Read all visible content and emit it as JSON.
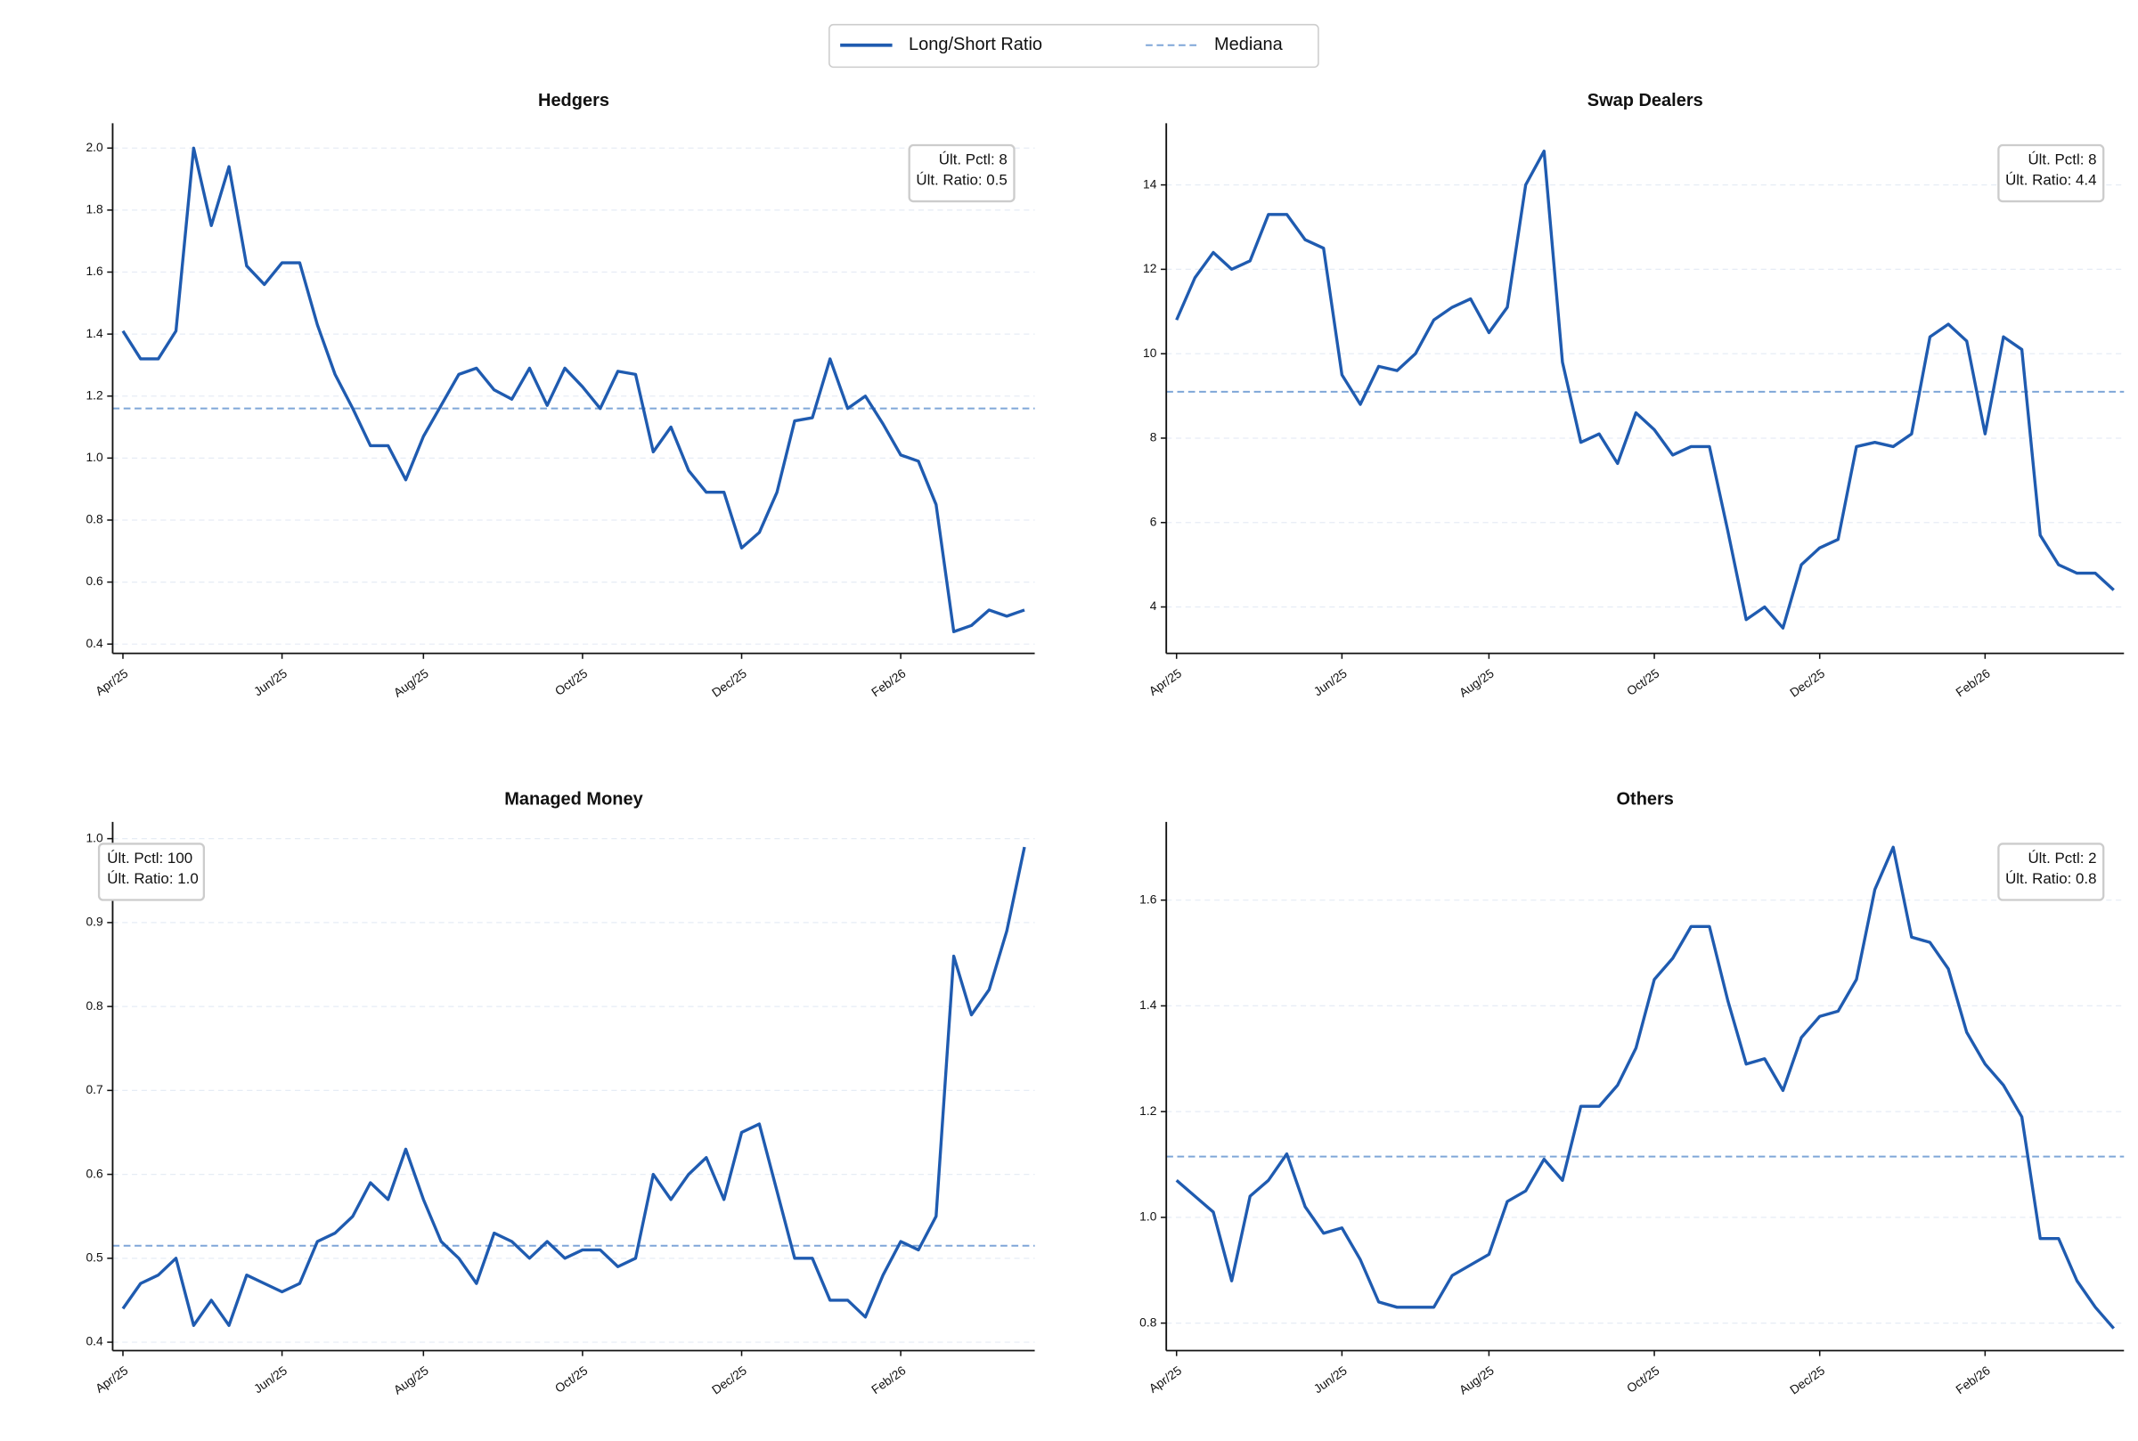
{
  "legend": {
    "entries": [
      {
        "name": "Long/Short Ratio",
        "color": "#1f5bb0"
      },
      {
        "name": "Mediana",
        "color": "#7fa6d8"
      }
    ]
  },
  "chart_data": [
    {
      "type": "line",
      "title": "Hedgers",
      "color": "#1f5bb0",
      "median_color": "#7fa6d8",
      "categories": [
        "Apr/25",
        null,
        null,
        null,
        null,
        null,
        null,
        null,
        null,
        "Jun/25",
        null,
        null,
        null,
        null,
        null,
        null,
        null,
        "Aug/25",
        null,
        null,
        null,
        null,
        null,
        null,
        null,
        null,
        "Oct/25",
        null,
        null,
        null,
        null,
        null,
        null,
        null,
        null,
        "Dec/25",
        null,
        null,
        null,
        null,
        null,
        null,
        null,
        null,
        "Feb/26",
        null,
        null,
        null,
        null,
        null,
        null,
        null
      ],
      "values": [
        1.41,
        1.32,
        1.32,
        1.41,
        2.0,
        1.75,
        1.94,
        1.62,
        1.56,
        1.63,
        1.63,
        1.43,
        1.27,
        1.16,
        1.04,
        1.04,
        0.93,
        1.07,
        1.17,
        1.27,
        1.29,
        1.22,
        1.19,
        1.29,
        1.17,
        1.29,
        1.23,
        1.16,
        1.28,
        1.27,
        1.02,
        1.1,
        0.96,
        0.89,
        0.89,
        0.71,
        0.76,
        0.89,
        1.12,
        1.13,
        1.32,
        1.16,
        1.2,
        1.11,
        1.01,
        0.99,
        0.85,
        0.44,
        0.46,
        0.51,
        0.49,
        0.51
      ],
      "median": 1.16,
      "ylim": [
        0.37,
        2.08
      ],
      "yticks": [
        0.4,
        0.6,
        0.8,
        {
          "value": 1.0,
          "label": "1.0"
        },
        1.2,
        1.4,
        1.6,
        1.8,
        {
          "value": 2.0,
          "label": "2.0"
        }
      ],
      "grid": true,
      "annotation": [
        "Últ. Pctl: 8",
        "Últ. Ratio: 0.5"
      ],
      "annotation_loc": "upper right"
    },
    {
      "type": "line",
      "title": "Swap Dealers",
      "color": "#1f5bb0",
      "median_color": "#7fa6d8",
      "categories": [
        "Apr/25",
        null,
        null,
        null,
        null,
        null,
        null,
        null,
        null,
        "Jun/25",
        null,
        null,
        null,
        null,
        null,
        null,
        null,
        "Aug/25",
        null,
        null,
        null,
        null,
        null,
        null,
        null,
        null,
        "Oct/25",
        null,
        null,
        null,
        null,
        null,
        null,
        null,
        null,
        "Dec/25",
        null,
        null,
        null,
        null,
        null,
        null,
        null,
        null,
        "Feb/26",
        null,
        null,
        null,
        null,
        null,
        null,
        null
      ],
      "values": [
        10.8,
        11.8,
        12.4,
        12.0,
        12.2,
        13.3,
        13.3,
        12.7,
        12.5,
        9.5,
        8.8,
        9.7,
        9.6,
        10.0,
        10.8,
        11.1,
        11.3,
        10.5,
        11.1,
        14.0,
        14.8,
        9.8,
        7.9,
        8.1,
        7.4,
        8.6,
        8.2,
        7.6,
        7.8,
        7.8,
        5.8,
        3.7,
        4.0,
        3.5,
        5.0,
        5.4,
        5.6,
        7.8,
        7.9,
        7.8,
        8.1,
        10.4,
        10.7,
        10.3,
        8.1,
        10.4,
        10.1,
        5.7,
        5.0,
        4.8,
        4.8,
        4.4
      ],
      "median": 9.1,
      "ylim": [
        2.9,
        15.46
      ],
      "yticks": [
        4,
        6,
        8,
        10,
        12,
        14
      ],
      "grid": true,
      "annotation": [
        "Últ. Pctl: 8",
        "Últ. Ratio: 4.4"
      ],
      "annotation_loc": "upper right"
    },
    {
      "type": "line",
      "title": "Managed Money",
      "color": "#1f5bb0",
      "median_color": "#7fa6d8",
      "categories": [
        "Apr/25",
        null,
        null,
        null,
        null,
        null,
        null,
        null,
        null,
        "Jun/25",
        null,
        null,
        null,
        null,
        null,
        null,
        null,
        "Aug/25",
        null,
        null,
        null,
        null,
        null,
        null,
        null,
        null,
        "Oct/25",
        null,
        null,
        null,
        null,
        null,
        null,
        null,
        null,
        "Dec/25",
        null,
        null,
        null,
        null,
        null,
        null,
        null,
        null,
        "Feb/26",
        null,
        null,
        null,
        null,
        null,
        null,
        null
      ],
      "values": [
        0.44,
        0.47,
        0.48,
        0.5,
        0.42,
        0.45,
        0.42,
        0.48,
        0.47,
        0.46,
        0.47,
        0.52,
        0.53,
        0.55,
        0.59,
        0.57,
        0.63,
        0.57,
        0.52,
        0.5,
        0.47,
        0.53,
        0.52,
        0.5,
        0.52,
        0.5,
        0.51,
        0.51,
        0.49,
        0.5,
        0.6,
        0.57,
        0.6,
        0.62,
        0.57,
        0.65,
        0.66,
        0.58,
        0.5,
        0.5,
        0.45,
        0.45,
        0.43,
        0.48,
        0.52,
        0.51,
        0.55,
        0.86,
        0.79,
        0.82,
        0.89,
        0.99
      ],
      "median": 0.515,
      "ylim": [
        0.39,
        1.02
      ],
      "yticks": [
        0.4,
        0.5,
        0.6,
        0.7,
        0.8,
        0.9,
        {
          "value": 1.0,
          "label": "1.0"
        }
      ],
      "grid": true,
      "annotation": [
        "Últ. Pctl: 100",
        "Últ. Ratio: 1.0"
      ],
      "annotation_loc": "upper left"
    },
    {
      "type": "line",
      "title": "Others",
      "color": "#1f5bb0",
      "median_color": "#7fa6d8",
      "categories": [
        "Apr/25",
        null,
        null,
        null,
        null,
        null,
        null,
        null,
        null,
        "Jun/25",
        null,
        null,
        null,
        null,
        null,
        null,
        null,
        "Aug/25",
        null,
        null,
        null,
        null,
        null,
        null,
        null,
        null,
        "Oct/25",
        null,
        null,
        null,
        null,
        null,
        null,
        null,
        null,
        "Dec/25",
        null,
        null,
        null,
        null,
        null,
        null,
        null,
        null,
        "Feb/26",
        null,
        null,
        null,
        null,
        null,
        null,
        null
      ],
      "values": [
        1.07,
        1.04,
        1.01,
        0.88,
        1.04,
        1.07,
        1.12,
        1.02,
        0.97,
        0.98,
        0.92,
        0.84,
        0.83,
        0.83,
        0.83,
        0.89,
        0.91,
        0.93,
        1.03,
        1.05,
        1.11,
        1.07,
        1.21,
        1.21,
        1.25,
        1.32,
        1.45,
        1.49,
        1.55,
        1.55,
        1.41,
        1.29,
        1.3,
        1.24,
        1.34,
        1.38,
        1.39,
        1.45,
        1.62,
        1.7,
        1.53,
        1.52,
        1.47,
        1.35,
        1.29,
        1.25,
        1.19,
        0.96,
        0.96,
        0.88,
        0.83,
        0.79
      ],
      "median": 1.115,
      "ylim": [
        0.748,
        1.748
      ],
      "yticks": [
        {
          "value": 0.8,
          "label": "0.8"
        },
        {
          "value": 1.0,
          "label": "1.0"
        },
        {
          "value": 1.2,
          "label": "1.2"
        },
        {
          "value": 1.4,
          "label": "1.4"
        },
        {
          "value": 1.6,
          "label": "1.6"
        }
      ],
      "grid": true,
      "annotation": [
        "Últ. Pctl: 2",
        "Últ. Ratio: 0.8"
      ],
      "annotation_loc": "upper right"
    }
  ]
}
